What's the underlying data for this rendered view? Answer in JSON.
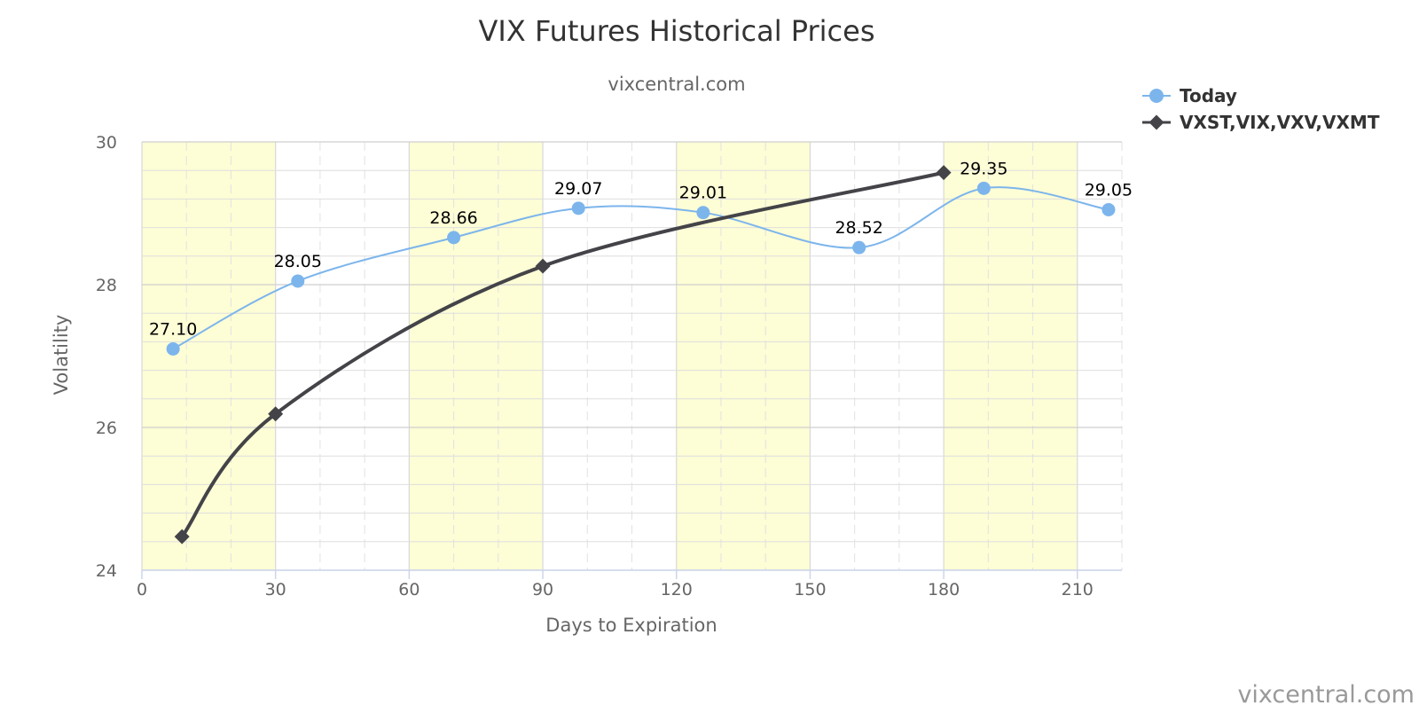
{
  "chart_data": {
    "type": "line",
    "title": "VIX Futures Historical Prices",
    "subtitle": "vixcentral.com",
    "xlabel": "Days to Expiration",
    "ylabel": "Volatility",
    "xlim": [
      0,
      220
    ],
    "ylim": [
      24,
      30
    ],
    "x_ticks": [
      0,
      30,
      60,
      90,
      120,
      150,
      180,
      210
    ],
    "y_ticks": [
      24,
      26,
      28,
      30
    ],
    "x_minor_step": 10,
    "y_minor_step": 0.4,
    "x_bands": [
      [
        0,
        30
      ],
      [
        60,
        90
      ],
      [
        120,
        150
      ],
      [
        180,
        210
      ]
    ],
    "band_color": "#fdfdd6",
    "grid": true,
    "legend": "top-right",
    "series": [
      {
        "name": "Today",
        "color": "#7cb5ec",
        "marker": "circle",
        "x": [
          7,
          35,
          70,
          98,
          126,
          161,
          189,
          217
        ],
        "y": [
          27.1,
          28.05,
          28.66,
          29.07,
          29.01,
          28.52,
          29.35,
          29.05
        ],
        "labels": [
          "27.10",
          "28.05",
          "28.66",
          "29.07",
          "29.01",
          "28.52",
          "29.35",
          "29.05"
        ]
      },
      {
        "name": "VXST,VIX,VXV,VXMT",
        "color": "#434348",
        "marker": "diamond",
        "x": [
          9,
          30,
          90,
          180
        ],
        "y": [
          24.47,
          26.19,
          28.26,
          29.57
        ]
      }
    ],
    "credit": "vixcentral.com"
  }
}
